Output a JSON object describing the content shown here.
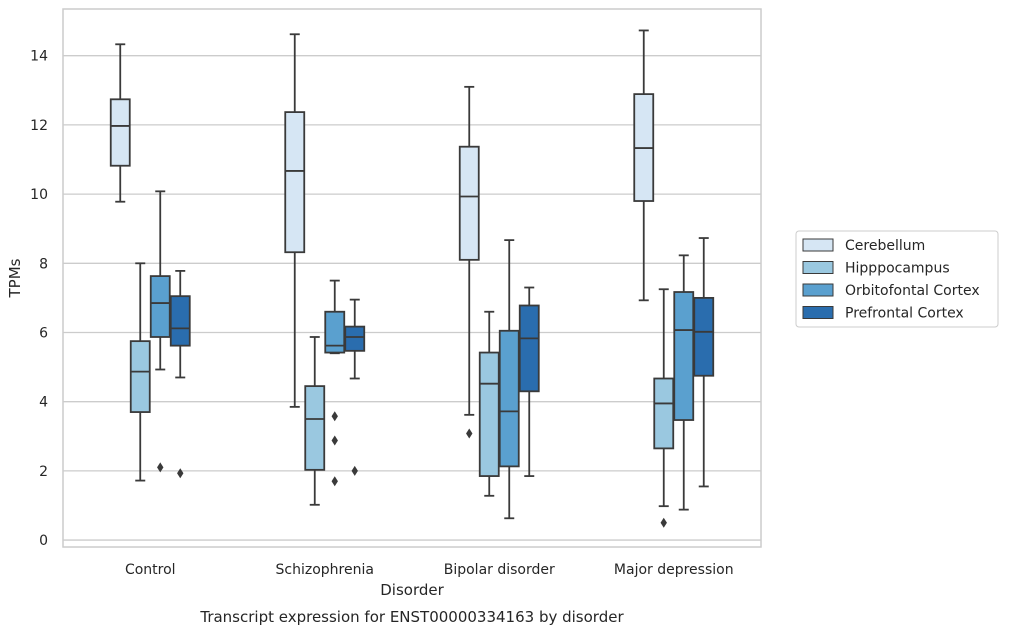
{
  "chart_data": {
    "type": "box",
    "title": "",
    "caption": "Transcript expression for ENST00000334163 by disorder",
    "xlabel": "Disorder",
    "ylabel": "TPMs",
    "ylim": [
      -0.2,
      15.35
    ],
    "yticks": [
      0,
      2,
      4,
      6,
      8,
      10,
      12,
      14
    ],
    "grid": "horizontal",
    "legend_placement": "right-center",
    "categories": [
      "Control",
      "Schizophrenia",
      "Bipolar disorder",
      "Major depression"
    ],
    "series": [
      {
        "name": "Cerebellum",
        "color": "#d6e6f4",
        "boxes": [
          {
            "whislo": 9.78,
            "q1": 10.82,
            "med": 11.97,
            "q3": 12.74,
            "whishi": 14.33,
            "fliers": []
          },
          {
            "whislo": 3.85,
            "q1": 8.32,
            "med": 10.67,
            "q3": 12.37,
            "whishi": 14.62,
            "fliers": []
          },
          {
            "whislo": 3.62,
            "q1": 8.1,
            "med": 9.93,
            "q3": 11.37,
            "whishi": 13.1,
            "fliers": [
              3.08
            ]
          },
          {
            "whislo": 6.93,
            "q1": 9.8,
            "med": 11.33,
            "q3": 12.89,
            "whishi": 14.73,
            "fliers": []
          }
        ]
      },
      {
        "name": "Hipppocampus",
        "color": "#9ac8e0",
        "boxes": [
          {
            "whislo": 1.72,
            "q1": 3.7,
            "med": 4.87,
            "q3": 5.75,
            "whishi": 8.0,
            "fliers": []
          },
          {
            "whislo": 1.02,
            "q1": 2.03,
            "med": 3.5,
            "q3": 4.45,
            "whishi": 5.87,
            "fliers": []
          },
          {
            "whislo": 1.28,
            "q1": 1.85,
            "med": 4.52,
            "q3": 5.42,
            "whishi": 6.6,
            "fliers": []
          },
          {
            "whislo": 0.98,
            "q1": 2.65,
            "med": 3.95,
            "q3": 4.67,
            "whishi": 7.25,
            "fliers": [
              0.5
            ]
          }
        ]
      },
      {
        "name": "Orbitofontal Cortex",
        "color": "#5aa0cf",
        "boxes": [
          {
            "whislo": 4.93,
            "q1": 5.87,
            "med": 6.85,
            "q3": 7.63,
            "whishi": 10.08,
            "fliers": [
              2.1
            ]
          },
          {
            "whislo": 5.4,
            "q1": 5.42,
            "med": 5.62,
            "q3": 6.6,
            "whishi": 7.5,
            "fliers": [
              3.58,
              2.88,
              1.7
            ]
          },
          {
            "whislo": 0.63,
            "q1": 2.13,
            "med": 3.72,
            "q3": 6.05,
            "whishi": 8.67,
            "fliers": []
          },
          {
            "whislo": 0.88,
            "q1": 3.47,
            "med": 6.07,
            "q3": 7.17,
            "whishi": 8.23,
            "fliers": []
          }
        ]
      },
      {
        "name": "Prefrontal Cortex",
        "color": "#2a6dae",
        "boxes": [
          {
            "whislo": 4.7,
            "q1": 5.62,
            "med": 6.12,
            "q3": 7.05,
            "whishi": 7.78,
            "fliers": [
              1.93
            ]
          },
          {
            "whislo": 4.67,
            "q1": 5.47,
            "med": 5.87,
            "q3": 6.17,
            "whishi": 6.95,
            "fliers": [
              2.0
            ]
          },
          {
            "whislo": 1.85,
            "q1": 4.3,
            "med": 5.83,
            "q3": 6.78,
            "whishi": 7.3,
            "fliers": []
          },
          {
            "whislo": 1.55,
            "q1": 4.75,
            "med": 6.02,
            "q3": 7.0,
            "whishi": 8.73,
            "fliers": []
          }
        ]
      }
    ]
  }
}
